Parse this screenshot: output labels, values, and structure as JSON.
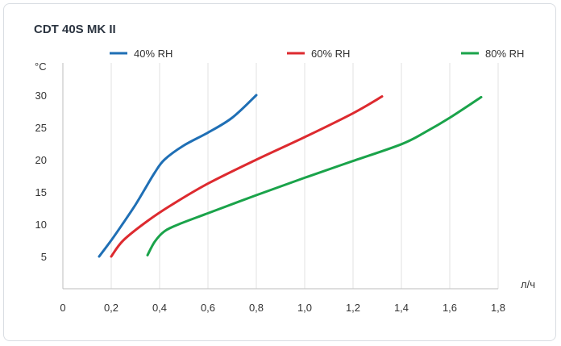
{
  "chart_data": {
    "type": "line",
    "title": "CDT 40S MK II",
    "xlabel": "л/ч",
    "ylabel": "°C",
    "xlim": [
      0,
      1.8
    ],
    "ylim": [
      0,
      35
    ],
    "xticks": [
      0,
      0.2,
      0.4,
      0.6,
      0.8,
      1.0,
      1.2,
      1.4,
      1.6,
      1.8
    ],
    "xtick_labels": [
      "0",
      "0,2",
      "0,4",
      "0,6",
      "0,8",
      "1,0",
      "1,2",
      "1,4",
      "1,6",
      "1,8"
    ],
    "yticks": [
      5,
      10,
      15,
      20,
      25,
      30
    ],
    "ytick_labels": [
      "5",
      "10",
      "15",
      "20",
      "25",
      "30"
    ],
    "grid": "vertical",
    "legend_position": "top",
    "series": [
      {
        "name": "40% RH",
        "color": "#1f6fb5",
        "points": [
          [
            0.15,
            5
          ],
          [
            0.2,
            7.5
          ],
          [
            0.25,
            10.2
          ],
          [
            0.3,
            13
          ],
          [
            0.34,
            15.5
          ],
          [
            0.38,
            18
          ],
          [
            0.42,
            20
          ],
          [
            0.5,
            22.2
          ],
          [
            0.6,
            24.2
          ],
          [
            0.7,
            26.5
          ],
          [
            0.8,
            30
          ]
        ]
      },
      {
        "name": "60% RH",
        "color": "#dd2a2f",
        "points": [
          [
            0.2,
            5
          ],
          [
            0.25,
            7.5
          ],
          [
            0.35,
            10.5
          ],
          [
            0.45,
            13
          ],
          [
            0.6,
            16.3
          ],
          [
            0.8,
            20
          ],
          [
            1.0,
            23.5
          ],
          [
            1.2,
            27.2
          ],
          [
            1.32,
            29.8
          ]
        ]
      },
      {
        "name": "80% RH",
        "color": "#1aa34a",
        "points": [
          [
            0.35,
            5.2
          ],
          [
            0.38,
            7.3
          ],
          [
            0.42,
            8.9
          ],
          [
            0.48,
            10
          ],
          [
            0.6,
            11.7
          ],
          [
            0.8,
            14.5
          ],
          [
            1.0,
            17.2
          ],
          [
            1.2,
            19.8
          ],
          [
            1.4,
            22.4
          ],
          [
            1.5,
            24.3
          ],
          [
            1.6,
            26.5
          ],
          [
            1.73,
            29.7
          ]
        ]
      }
    ]
  }
}
